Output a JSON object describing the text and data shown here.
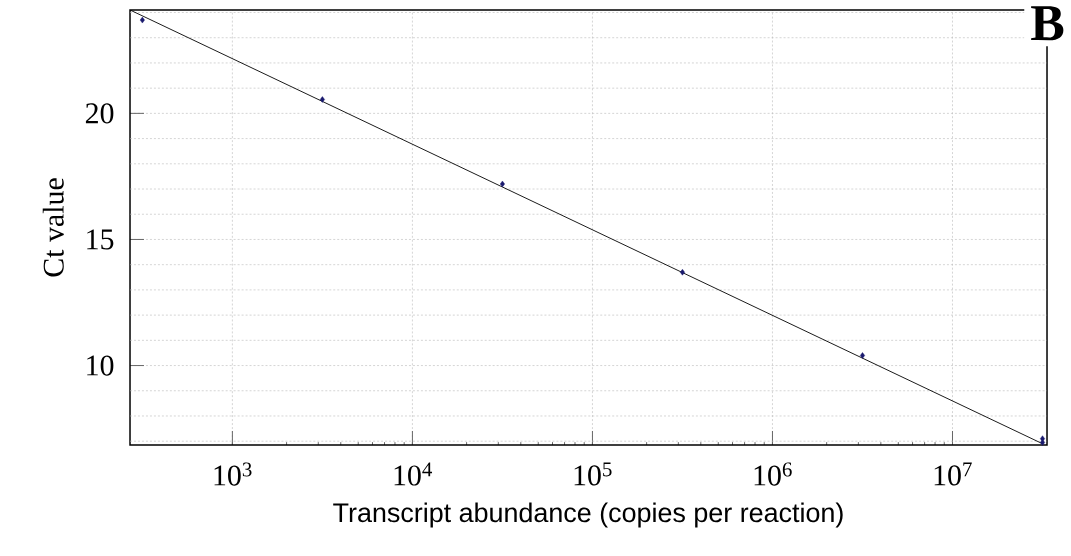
{
  "chart_data": {
    "type": "scatter",
    "xlabel": "Transcript abundance (copies per reaction)",
    "ylabel": "Ct value",
    "annotations": [
      "B"
    ],
    "log": "x",
    "xlim": [
      270,
      33500000
    ],
    "ylim": [
      6.85,
      24.1
    ],
    "xticks": [
      {
        "value": 1000,
        "label": "10$^{3}$"
      },
      {
        "value": 10000,
        "label": "10$^{4}$"
      },
      {
        "value": 100000,
        "label": "10$^{5}$"
      },
      {
        "value": 1000000,
        "label": "10$^{6}$"
      },
      {
        "value": 10000000,
        "label": "10$^{7}$"
      }
    ],
    "yticks": [
      {
        "value": 7,
        "label": null
      },
      {
        "value": 8,
        "label": null
      },
      {
        "value": 9,
        "label": null
      },
      10,
      {
        "value": 11,
        "label": null
      },
      {
        "value": 12,
        "label": null
      },
      {
        "value": 13,
        "label": null
      },
      {
        "value": 14,
        "label": null
      },
      15,
      {
        "value": 16,
        "label": null
      },
      {
        "value": 17,
        "label": null
      },
      {
        "value": 18,
        "label": null
      },
      {
        "value": 19,
        "label": null
      },
      20,
      {
        "value": 21,
        "label": null
      },
      {
        "value": 22,
        "label": null
      },
      {
        "value": 23,
        "label": null
      },
      {
        "value": 24,
        "label": null
      }
    ],
    "grid": true,
    "series": [
      {
        "color": "#1a1a6e",
        "marker": "diamond",
        "x": [
          316.2,
          3162,
          31623,
          316228,
          3162278,
          31622777,
          31622777
        ],
        "values": [
          23.7,
          20.55,
          17.2,
          13.7,
          10.4,
          7.1,
          6.95
        ]
      },
      {
        "type": "line",
        "color": "#000000",
        "marker": "none",
        "x": [
          270,
          31622777
        ],
        "values": [
          24.1,
          6.9
        ]
      }
    ]
  }
}
